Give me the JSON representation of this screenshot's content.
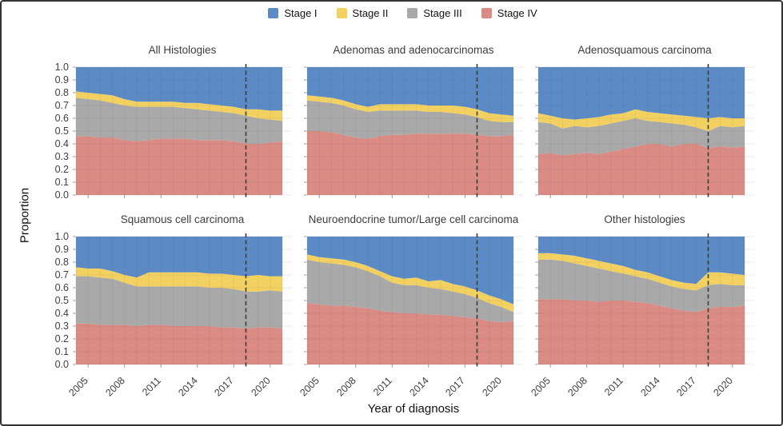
{
  "chart_data": {
    "type": "area",
    "stacked": true,
    "xlabel": "Year of diagnosis",
    "ylabel": "Proportion",
    "ylim": [
      0.0,
      1.0
    ],
    "grid": true,
    "legend_position": "top",
    "dashed_line_year": 2018,
    "years": [
      2004,
      2005,
      2006,
      2007,
      2008,
      2009,
      2010,
      2011,
      2012,
      2013,
      2014,
      2015,
      2016,
      2017,
      2018,
      2019,
      2020,
      2021
    ],
    "xticks": [
      2005,
      2008,
      2011,
      2014,
      2017,
      2020
    ],
    "yticks": [
      0.0,
      0.1,
      0.2,
      0.3,
      0.4,
      0.5,
      0.6,
      0.7,
      0.8,
      0.9,
      1.0
    ],
    "colors": {
      "stage_i": "#5b8ac5",
      "stage_ii": "#f2d161",
      "stage_iii": "#a9a9a9",
      "stage_iv": "#d98b84"
    },
    "legend": {
      "items": [
        {
          "label": "Stage I",
          "color": "#5b8ac5"
        },
        {
          "label": "Stage II",
          "color": "#f2d161"
        },
        {
          "label": "Stage III",
          "color": "#a9a9a9"
        },
        {
          "label": "Stage IV",
          "color": "#d98b84"
        }
      ]
    },
    "stack_order_bottom_to_top": [
      "stage_iv",
      "stage_iii",
      "stage_ii",
      "stage_i"
    ],
    "panels": [
      {
        "title": "All Histologies",
        "series": {
          "stage_iv": [
            0.46,
            0.46,
            0.45,
            0.45,
            0.43,
            0.42,
            0.43,
            0.44,
            0.44,
            0.44,
            0.43,
            0.43,
            0.43,
            0.42,
            0.4,
            0.4,
            0.41,
            0.42
          ],
          "stage_iii": [
            0.3,
            0.29,
            0.29,
            0.27,
            0.27,
            0.27,
            0.26,
            0.25,
            0.25,
            0.24,
            0.24,
            0.23,
            0.22,
            0.22,
            0.22,
            0.2,
            0.18,
            0.16
          ],
          "stage_ii": [
            0.05,
            0.05,
            0.05,
            0.06,
            0.05,
            0.04,
            0.04,
            0.04,
            0.04,
            0.04,
            0.05,
            0.05,
            0.05,
            0.05,
            0.05,
            0.07,
            0.07,
            0.08
          ],
          "stage_i": [
            0.19,
            0.2,
            0.21,
            0.22,
            0.25,
            0.27,
            0.27,
            0.27,
            0.27,
            0.28,
            0.28,
            0.29,
            0.3,
            0.31,
            0.33,
            0.33,
            0.34,
            0.34
          ]
        }
      },
      {
        "title": "Adenomas and adenocarcinomas",
        "series": {
          "stage_iv": [
            0.5,
            0.5,
            0.49,
            0.47,
            0.45,
            0.44,
            0.46,
            0.47,
            0.47,
            0.48,
            0.48,
            0.48,
            0.48,
            0.48,
            0.47,
            0.46,
            0.46,
            0.47
          ],
          "stage_iii": [
            0.24,
            0.23,
            0.23,
            0.23,
            0.22,
            0.21,
            0.2,
            0.19,
            0.19,
            0.18,
            0.17,
            0.17,
            0.16,
            0.15,
            0.14,
            0.12,
            0.11,
            0.1
          ],
          "stage_ii": [
            0.04,
            0.04,
            0.04,
            0.04,
            0.04,
            0.04,
            0.05,
            0.05,
            0.05,
            0.05,
            0.05,
            0.05,
            0.06,
            0.06,
            0.06,
            0.06,
            0.06,
            0.05
          ],
          "stage_i": [
            0.22,
            0.23,
            0.24,
            0.26,
            0.29,
            0.31,
            0.29,
            0.29,
            0.29,
            0.29,
            0.3,
            0.3,
            0.3,
            0.31,
            0.33,
            0.36,
            0.37,
            0.38
          ]
        }
      },
      {
        "title": "Adenosquamous carcinoma",
        "series": {
          "stage_iv": [
            0.32,
            0.33,
            0.31,
            0.32,
            0.33,
            0.32,
            0.34,
            0.36,
            0.38,
            0.4,
            0.4,
            0.38,
            0.4,
            0.4,
            0.37,
            0.38,
            0.37,
            0.38
          ],
          "stage_iii": [
            0.25,
            0.23,
            0.21,
            0.22,
            0.2,
            0.22,
            0.22,
            0.22,
            0.22,
            0.18,
            0.17,
            0.18,
            0.15,
            0.13,
            0.13,
            0.16,
            0.16,
            0.16
          ],
          "stage_ii": [
            0.07,
            0.06,
            0.08,
            0.05,
            0.07,
            0.07,
            0.07,
            0.06,
            0.07,
            0.07,
            0.07,
            0.07,
            0.07,
            0.08,
            0.1,
            0.07,
            0.07,
            0.06
          ],
          "stage_i": [
            0.36,
            0.38,
            0.4,
            0.41,
            0.4,
            0.39,
            0.37,
            0.36,
            0.33,
            0.35,
            0.36,
            0.37,
            0.38,
            0.39,
            0.4,
            0.39,
            0.4,
            0.4
          ]
        }
      },
      {
        "title": "Squamous cell carcinoma",
        "series": {
          "stage_iv": [
            0.32,
            0.32,
            0.31,
            0.31,
            0.31,
            0.3,
            0.31,
            0.31,
            0.3,
            0.3,
            0.3,
            0.3,
            0.29,
            0.29,
            0.28,
            0.29,
            0.29,
            0.28
          ],
          "stage_iii": [
            0.37,
            0.37,
            0.37,
            0.36,
            0.33,
            0.31,
            0.3,
            0.3,
            0.31,
            0.31,
            0.31,
            0.3,
            0.31,
            0.3,
            0.29,
            0.28,
            0.29,
            0.29
          ],
          "stage_ii": [
            0.07,
            0.06,
            0.07,
            0.06,
            0.06,
            0.07,
            0.11,
            0.11,
            0.11,
            0.11,
            0.11,
            0.11,
            0.11,
            0.11,
            0.12,
            0.13,
            0.11,
            0.12
          ],
          "stage_i": [
            0.24,
            0.25,
            0.25,
            0.27,
            0.3,
            0.32,
            0.28,
            0.28,
            0.28,
            0.28,
            0.28,
            0.29,
            0.29,
            0.3,
            0.31,
            0.3,
            0.31,
            0.31
          ]
        }
      },
      {
        "title": "Neuroendocrine tumor/Large cell carcinoma",
        "series": {
          "stage_iv": [
            0.48,
            0.47,
            0.46,
            0.46,
            0.45,
            0.44,
            0.42,
            0.41,
            0.4,
            0.4,
            0.39,
            0.39,
            0.38,
            0.37,
            0.36,
            0.34,
            0.33,
            0.34
          ],
          "stage_iii": [
            0.34,
            0.33,
            0.33,
            0.32,
            0.31,
            0.29,
            0.27,
            0.23,
            0.22,
            0.22,
            0.21,
            0.2,
            0.19,
            0.18,
            0.16,
            0.14,
            0.12,
            0.07
          ],
          "stage_ii": [
            0.04,
            0.04,
            0.04,
            0.04,
            0.04,
            0.04,
            0.04,
            0.05,
            0.05,
            0.06,
            0.05,
            0.07,
            0.06,
            0.06,
            0.06,
            0.06,
            0.06,
            0.06
          ],
          "stage_i": [
            0.14,
            0.16,
            0.17,
            0.18,
            0.2,
            0.23,
            0.27,
            0.31,
            0.33,
            0.32,
            0.35,
            0.34,
            0.37,
            0.39,
            0.42,
            0.46,
            0.49,
            0.53
          ]
        }
      },
      {
        "title": "Other histologies",
        "series": {
          "stage_iv": [
            0.51,
            0.51,
            0.51,
            0.5,
            0.5,
            0.49,
            0.5,
            0.5,
            0.49,
            0.48,
            0.46,
            0.44,
            0.42,
            0.41,
            0.44,
            0.45,
            0.45,
            0.46
          ],
          "stage_iii": [
            0.31,
            0.31,
            0.3,
            0.29,
            0.27,
            0.26,
            0.23,
            0.21,
            0.2,
            0.19,
            0.18,
            0.17,
            0.17,
            0.17,
            0.18,
            0.18,
            0.17,
            0.16
          ],
          "stage_ii": [
            0.05,
            0.05,
            0.05,
            0.06,
            0.06,
            0.06,
            0.06,
            0.06,
            0.05,
            0.05,
            0.05,
            0.05,
            0.05,
            0.05,
            0.1,
            0.09,
            0.09,
            0.08
          ],
          "stage_i": [
            0.13,
            0.13,
            0.14,
            0.15,
            0.17,
            0.19,
            0.21,
            0.23,
            0.26,
            0.28,
            0.31,
            0.34,
            0.36,
            0.37,
            0.28,
            0.28,
            0.29,
            0.3
          ]
        }
      }
    ]
  }
}
